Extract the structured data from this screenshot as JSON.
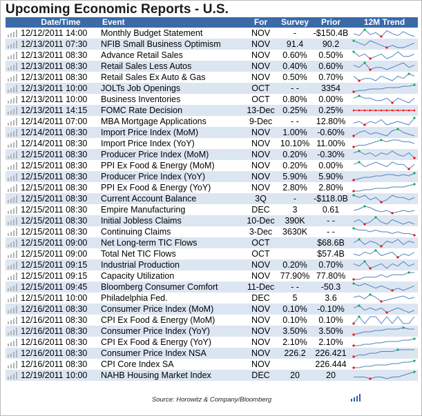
{
  "title": "Upcoming Economic Reports - U.S.",
  "columns": {
    "date": "Date/Time",
    "event": "Event",
    "for": "For",
    "survey": "Survey",
    "prior": "Prior",
    "trend": "12M Trend"
  },
  "rows": [
    {
      "date": "12/12/2011 14:00",
      "event": "Monthly Budget Statement",
      "for": "NOV",
      "survey": "-",
      "prior": "-$150.4B",
      "trend": [
        5,
        3,
        9,
        4,
        6,
        2,
        8,
        5,
        3,
        7,
        4,
        2
      ]
    },
    {
      "date": "12/13/2011 07:30",
      "event": "NFIB Small Business Optimism",
      "for": "NOV",
      "survey": "91.4",
      "prior": "90.2",
      "trend": [
        6,
        5,
        4,
        6,
        5,
        4,
        3,
        4,
        3,
        3,
        4,
        5
      ]
    },
    {
      "date": "12/13/2011 08:30",
      "event": "Advance Retail Sales",
      "for": "NOV",
      "survey": "0.60%",
      "prior": "0.50%",
      "trend": [
        7,
        5,
        6,
        4,
        5,
        6,
        4,
        5,
        7,
        5,
        5,
        6
      ]
    },
    {
      "date": "12/13/2011 08:30",
      "event": "Retail Sales Less Autos",
      "for": "NOV",
      "survey": "0.40%",
      "prior": "0.60%",
      "trend": [
        6,
        5,
        7,
        4,
        5,
        5,
        4,
        5,
        6,
        7,
        5,
        6
      ]
    },
    {
      "date": "12/13/2011 08:30",
      "event": "Retail Sales Ex Auto & Gas",
      "for": "NOV",
      "survey": "0.50%",
      "prior": "0.70%",
      "trend": [
        6,
        4,
        5,
        5,
        4,
        6,
        5,
        4,
        6,
        5,
        7,
        6
      ]
    },
    {
      "date": "12/13/2011 10:00",
      "event": "JOLTs Job Openings",
      "for": "OCT",
      "survey": "- -",
      "prior": "3354",
      "trend": [
        3,
        4,
        4,
        5,
        5,
        5,
        6,
        6,
        6,
        7,
        7,
        8
      ]
    },
    {
      "date": "12/13/2011 10:00",
      "event": "Business Inventories",
      "for": "OCT",
      "survey": "0.80%",
      "prior": "0.00%",
      "trend": [
        6,
        7,
        6,
        6,
        5,
        5,
        6,
        4,
        6,
        5,
        4,
        6
      ]
    },
    {
      "date": "12/13/2011 14:15",
      "event": "FOMC Rate Decision",
      "for": "13-Dec",
      "survey": "0.25%",
      "prior": "0.25%",
      "trend": [
        5,
        5,
        5,
        5,
        5,
        5,
        5,
        5,
        5,
        5,
        5,
        5
      ]
    },
    {
      "date": "12/14/2011 07:00",
      "event": "MBA Mortgage Applications",
      "for": "9-Dec",
      "survey": "- -",
      "prior": "12.80%",
      "trend": [
        5,
        6,
        4,
        6,
        5,
        7,
        4,
        5,
        6,
        5,
        4,
        8
      ]
    },
    {
      "date": "12/14/2011 08:30",
      "event": "Import Price Index (MoM)",
      "for": "NOV",
      "survey": "1.00%",
      "prior": "-0.60%",
      "trend": [
        4,
        6,
        7,
        5,
        6,
        5,
        4,
        7,
        8,
        6,
        5,
        4
      ]
    },
    {
      "date": "12/14/2011 08:30",
      "event": "Import Price Index (YoY)",
      "for": "NOV",
      "survey": "10.10%",
      "prior": "11.00%",
      "trend": [
        4,
        5,
        5,
        6,
        7,
        8,
        7,
        8,
        8,
        7,
        7,
        6
      ]
    },
    {
      "date": "12/15/2011 08:30",
      "event": "Producer Price Index (MoM)",
      "for": "NOV",
      "survey": "0.20%",
      "prior": "-0.30%",
      "trend": [
        6,
        7,
        5,
        6,
        4,
        6,
        5,
        7,
        5,
        4,
        6,
        3
      ]
    },
    {
      "date": "12/15/2011 08:30",
      "event": "PPI Ex Food & Energy (MoM)",
      "for": "NOV",
      "survey": "0.20%",
      "prior": "0.00%",
      "trend": [
        5,
        6,
        4,
        5,
        6,
        5,
        4,
        6,
        5,
        5,
        3,
        5
      ]
    },
    {
      "date": "12/15/2011 08:30",
      "event": "Producer Price Index (YoY)",
      "for": "NOV",
      "survey": "5.90%",
      "prior": "5.90%",
      "trend": [
        3,
        4,
        5,
        5,
        6,
        6,
        7,
        7,
        6,
        7,
        6,
        8
      ]
    },
    {
      "date": "12/15/2011 08:30",
      "event": "PPI Ex Food & Energy (YoY)",
      "for": "NOV",
      "survey": "2.80%",
      "prior": "2.80%",
      "trend": [
        3,
        3,
        4,
        4,
        5,
        5,
        5,
        6,
        6,
        6,
        7,
        8
      ]
    },
    {
      "date": "12/15/2011 08:30",
      "event": "Current Account Balance",
      "for": "3Q",
      "survey": "-",
      "prior": "-$118.0B",
      "trend": [
        6,
        5,
        6,
        4,
        5,
        3,
        4,
        6,
        5,
        5,
        4,
        5
      ]
    },
    {
      "date": "12/15/2011 08:30",
      "event": "Empire Manufacturing",
      "for": "DEC",
      "survey": "3",
      "prior": "0.61",
      "trend": [
        5,
        6,
        8,
        7,
        5,
        4,
        5,
        3,
        4,
        5,
        4,
        5
      ]
    },
    {
      "date": "12/15/2011 08:30",
      "event": "Initial Jobless Claims",
      "for": "10-Dec",
      "survey": "390K",
      "prior": "- -",
      "trend": [
        5,
        6,
        4,
        5,
        7,
        5,
        4,
        6,
        5,
        4,
        5,
        4
      ]
    },
    {
      "date": "12/15/2011 08:30",
      "event": "Continuing Claims",
      "for": "3-Dec",
      "survey": "3630K",
      "prior": "- -",
      "trend": [
        7,
        6,
        6,
        5,
        6,
        5,
        5,
        4,
        5,
        4,
        4,
        3
      ]
    },
    {
      "date": "12/15/2011 09:00",
      "event": "Net Long-term TIC Flows",
      "for": "OCT",
      "survey": "",
      "prior": "$68.6B",
      "trend": [
        5,
        7,
        4,
        6,
        5,
        3,
        6,
        5,
        7,
        4,
        6,
        5
      ]
    },
    {
      "date": "12/15/2011 09:00",
      "event": "Total Net TIC Flows",
      "for": "OCT",
      "survey": "",
      "prior": "$57.4B",
      "trend": [
        5,
        4,
        6,
        5,
        7,
        4,
        5,
        6,
        3,
        5,
        4,
        6
      ]
    },
    {
      "date": "12/15/2011 09:15",
      "event": "Industrial Production",
      "for": "NOV",
      "survey": "0.20%",
      "prior": "0.70%",
      "trend": [
        6,
        5,
        7,
        4,
        5,
        6,
        4,
        6,
        5,
        7,
        5,
        6
      ]
    },
    {
      "date": "12/15/2011 09:15",
      "event": "Capacity Utilization",
      "for": "NOV",
      "survey": "77.90%",
      "prior": "77.80%",
      "trend": [
        4,
        4,
        5,
        5,
        5,
        6,
        5,
        6,
        6,
        6,
        7,
        7
      ]
    },
    {
      "date": "12/15/2011 09:45",
      "event": "Bloomberg Consumer Comfort",
      "for": "11-Dec",
      "survey": "- -",
      "prior": "-50.3",
      "trend": [
        6,
        5,
        6,
        5,
        4,
        5,
        4,
        3,
        4,
        3,
        4,
        5
      ]
    },
    {
      "date": "12/15/2011 10:00",
      "event": "Philadelphia Fed.",
      "for": "DEC",
      "survey": "5",
      "prior": "3.6",
      "trend": [
        6,
        7,
        5,
        8,
        6,
        3,
        4,
        5,
        6,
        7,
        5,
        6
      ]
    },
    {
      "date": "12/16/2011 08:30",
      "event": "Consumer Price Index (MoM)",
      "for": "NOV",
      "survey": "0.10%",
      "prior": "-0.10%",
      "trend": [
        6,
        7,
        5,
        6,
        5,
        6,
        4,
        5,
        6,
        5,
        4,
        5
      ]
    },
    {
      "date": "12/16/2011 08:30",
      "event": "CPI Ex Food & Energy (MoM)",
      "for": "NOV",
      "survey": "0.10%",
      "prior": "0.10%",
      "trend": [
        5,
        6,
        5,
        6,
        6,
        5,
        6,
        5,
        6,
        5,
        5,
        6
      ]
    },
    {
      "date": "12/16/2011 08:30",
      "event": "Consumer Price Index (YoY)",
      "for": "NOV",
      "survey": "3.50%",
      "prior": "3.50%",
      "trend": [
        3,
        4,
        5,
        5,
        6,
        6,
        7,
        7,
        7,
        8,
        7,
        7
      ]
    },
    {
      "date": "12/16/2011 08:30",
      "event": "CPI Ex Food & Energy (YoY)",
      "for": "NOV",
      "survey": "2.10%",
      "prior": "2.10%",
      "trend": [
        3,
        3,
        4,
        4,
        5,
        5,
        6,
        6,
        6,
        7,
        7,
        8
      ]
    },
    {
      "date": "12/16/2011 08:30",
      "event": "Consumer Price Index NSA",
      "for": "NOV",
      "survey": "226.2",
      "prior": "226.421",
      "trend": [
        3,
        4,
        4,
        5,
        5,
        6,
        6,
        6,
        7,
        7,
        7,
        7
      ]
    },
    {
      "date": "12/16/2011 08:30",
      "event": "CPI Core Index SA",
      "for": "NOV",
      "survey": "",
      "prior": "226.444",
      "trend": [
        3,
        3,
        4,
        4,
        5,
        5,
        5,
        6,
        6,
        7,
        7,
        8
      ]
    },
    {
      "date": "12/19/2011 10:00",
      "event": "NAHB Housing Market Index",
      "for": "DEC",
      "survey": "20",
      "prior": "20",
      "trend": [
        4,
        4,
        4,
        3,
        4,
        4,
        3,
        4,
        4,
        5,
        6,
        7
      ]
    }
  ],
  "source": "Source: Horowitz & Company/Bloomberg",
  "colors": {
    "header_bg": "#3a6aa8",
    "alt_row": "#dce6f2",
    "trend_line": "#4f81bd",
    "trend_high": "#00b050",
    "trend_low": "#ff0000"
  }
}
